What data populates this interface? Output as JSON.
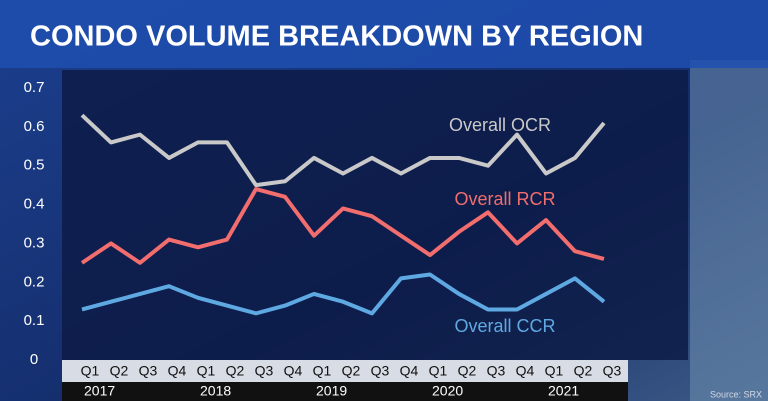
{
  "chart_data": {
    "type": "line",
    "title": "CONDO VOLUME BREAKDOWN BY REGION",
    "categories": [
      "Q1",
      "Q2",
      "Q3",
      "Q4",
      "Q1",
      "Q2",
      "Q3",
      "Q4",
      "Q1",
      "Q2",
      "Q3",
      "Q4",
      "Q1",
      "Q2",
      "Q3",
      "Q4",
      "Q1",
      "Q2",
      "Q3"
    ],
    "years": [
      "2017",
      "2018",
      "2019",
      "2020",
      "2021"
    ],
    "series": [
      {
        "name": "Overall OCR",
        "color": "#c9c9c9",
        "values": [
          0.63,
          0.56,
          0.58,
          0.52,
          0.56,
          0.56,
          0.45,
          0.46,
          0.52,
          0.48,
          0.52,
          0.48,
          0.52,
          0.52,
          0.5,
          0.58,
          0.48,
          0.52,
          0.61
        ]
      },
      {
        "name": "Overall RCR",
        "color": "#f26d6d",
        "values": [
          0.25,
          0.3,
          0.25,
          0.31,
          0.29,
          0.31,
          0.44,
          0.42,
          0.32,
          0.39,
          0.37,
          0.32,
          0.27,
          0.33,
          0.38,
          0.3,
          0.36,
          0.28,
          0.26
        ]
      },
      {
        "name": "Overall CCR",
        "color": "#5fa9e2",
        "values": [
          0.13,
          0.15,
          0.17,
          0.19,
          0.16,
          0.14,
          0.12,
          0.14,
          0.17,
          0.15,
          0.12,
          0.21,
          0.22,
          0.17,
          0.13,
          0.13,
          0.17,
          0.21,
          0.15
        ]
      }
    ],
    "ylim": [
      0,
      0.7
    ],
    "yticks": [
      0,
      0.1,
      0.2,
      0.3,
      0.4,
      0.5,
      0.6,
      0.7
    ],
    "grid": false,
    "source": "Source: SRX"
  }
}
